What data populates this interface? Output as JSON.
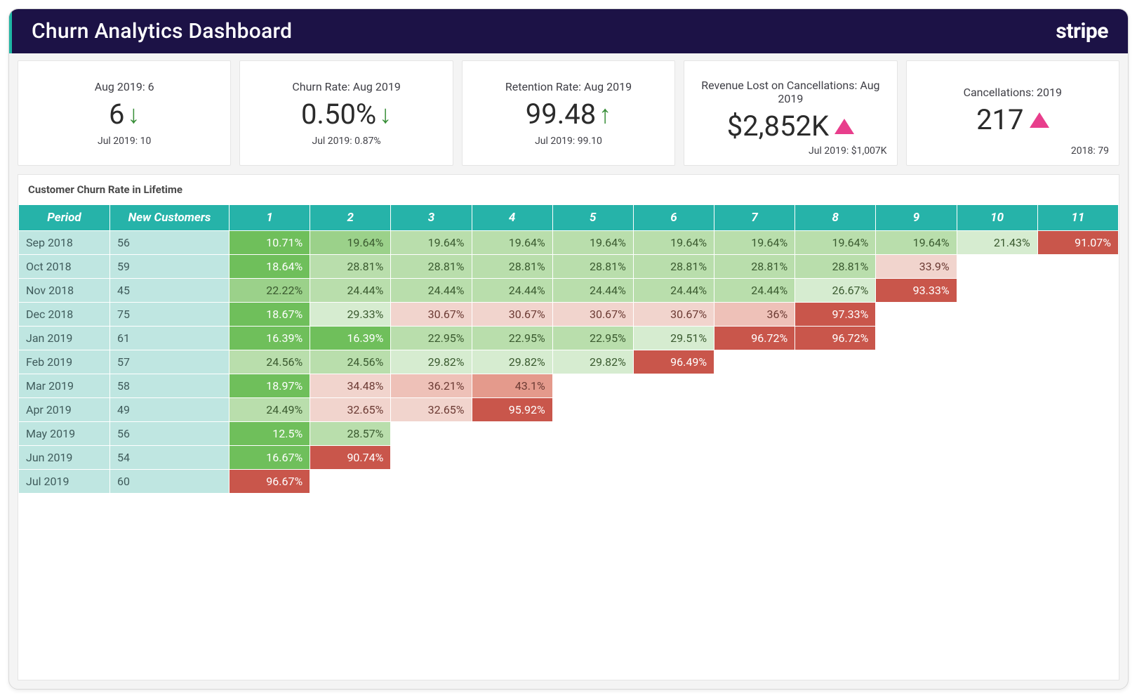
{
  "header": {
    "title": "Churn Analytics Dashboard",
    "brand": "stripe",
    "bg_color": "#1c1246",
    "accent_color": "#1fb6a4"
  },
  "kpis": [
    {
      "top": "Aug 2019: 6",
      "value": "6",
      "indicator": "arrow-down",
      "bottom": "Jul 2019: 10",
      "bottom_align": "center"
    },
    {
      "top": "Churn Rate: Aug 2019",
      "value": "0.50%",
      "indicator": "arrow-down",
      "bottom": "Jul 2019: 0.87%",
      "bottom_align": "center"
    },
    {
      "top": "Retention Rate: Aug 2019",
      "value": "99.48",
      "indicator": "arrow-up",
      "bottom": "Jul 2019: 99.10",
      "bottom_align": "center"
    },
    {
      "top": "Revenue Lost on Cancellations: Aug 2019",
      "value": "$2,852K",
      "indicator": "tri-up",
      "bottom": "Jul 2019: $1,007K",
      "bottom_align": "right"
    },
    {
      "top": "Cancellations: 2019",
      "value": "217",
      "indicator": "tri-up",
      "bottom": "2018: 79",
      "bottom_align": "right"
    }
  ],
  "cohort_table": {
    "title": "Customer Churn Rate in Lifetime",
    "type": "cohort-heatmap",
    "header_bg": "#26b3a9",
    "period_col_bg": "#bfe6e1",
    "columns": [
      "Period",
      "New Customers",
      "1",
      "2",
      "3",
      "4",
      "5",
      "6",
      "7",
      "8",
      "9",
      "10",
      "11"
    ],
    "heat_palette": {
      "g1": {
        "bg": "#6fbf5b",
        "fg": "#ffffff"
      },
      "g2": {
        "bg": "#9bd18a",
        "fg": "#3a5a2f"
      },
      "g3": {
        "bg": "#b9deac",
        "fg": "#3a5a2f"
      },
      "g4": {
        "bg": "#d6ecd0",
        "fg": "#3a5a2f"
      },
      "p1": {
        "bg": "#f1d4cd",
        "fg": "#6b3a33"
      },
      "p2": {
        "bg": "#eec1b8",
        "fg": "#6b3a33"
      },
      "p3": {
        "bg": "#e49a8c",
        "fg": "#6b3a33"
      },
      "r1": {
        "bg": "#c9564b",
        "fg": "#ffffff"
      }
    },
    "rows": [
      {
        "period": "Sep 2018",
        "new": "56",
        "cells": [
          {
            "v": "10.71%",
            "c": "g1"
          },
          {
            "v": "19.64%",
            "c": "g2"
          },
          {
            "v": "19.64%",
            "c": "g3"
          },
          {
            "v": "19.64%",
            "c": "g3"
          },
          {
            "v": "19.64%",
            "c": "g3"
          },
          {
            "v": "19.64%",
            "c": "g3"
          },
          {
            "v": "19.64%",
            "c": "g3"
          },
          {
            "v": "19.64%",
            "c": "g3"
          },
          {
            "v": "19.64%",
            "c": "g3"
          },
          {
            "v": "21.43%",
            "c": "g4"
          },
          {
            "v": "91.07%",
            "c": "r1"
          }
        ]
      },
      {
        "period": "Oct 2018",
        "new": "59",
        "cells": [
          {
            "v": "18.64%",
            "c": "g1"
          },
          {
            "v": "28.81%",
            "c": "g3"
          },
          {
            "v": "28.81%",
            "c": "g3"
          },
          {
            "v": "28.81%",
            "c": "g3"
          },
          {
            "v": "28.81%",
            "c": "g3"
          },
          {
            "v": "28.81%",
            "c": "g3"
          },
          {
            "v": "28.81%",
            "c": "g3"
          },
          {
            "v": "28.81%",
            "c": "g3"
          },
          {
            "v": "33.9%",
            "c": "p1"
          }
        ]
      },
      {
        "period": "Nov 2018",
        "new": "45",
        "cells": [
          {
            "v": "22.22%",
            "c": "g2"
          },
          {
            "v": "24.44%",
            "c": "g3"
          },
          {
            "v": "24.44%",
            "c": "g3"
          },
          {
            "v": "24.44%",
            "c": "g3"
          },
          {
            "v": "24.44%",
            "c": "g3"
          },
          {
            "v": "24.44%",
            "c": "g3"
          },
          {
            "v": "24.44%",
            "c": "g3"
          },
          {
            "v": "26.67%",
            "c": "g4"
          },
          {
            "v": "93.33%",
            "c": "r1"
          }
        ]
      },
      {
        "period": "Dec 2018",
        "new": "75",
        "cells": [
          {
            "v": "18.67%",
            "c": "g1"
          },
          {
            "v": "29.33%",
            "c": "g4"
          },
          {
            "v": "30.67%",
            "c": "p1"
          },
          {
            "v": "30.67%",
            "c": "p1"
          },
          {
            "v": "30.67%",
            "c": "p1"
          },
          {
            "v": "30.67%",
            "c": "p1"
          },
          {
            "v": "36%",
            "c": "p2"
          },
          {
            "v": "97.33%",
            "c": "r1"
          }
        ]
      },
      {
        "period": "Jan 2019",
        "new": "61",
        "cells": [
          {
            "v": "16.39%",
            "c": "g1"
          },
          {
            "v": "16.39%",
            "c": "g1"
          },
          {
            "v": "22.95%",
            "c": "g3"
          },
          {
            "v": "22.95%",
            "c": "g3"
          },
          {
            "v": "22.95%",
            "c": "g3"
          },
          {
            "v": "29.51%",
            "c": "g4"
          },
          {
            "v": "96.72%",
            "c": "r1"
          },
          {
            "v": "96.72%",
            "c": "r1"
          }
        ]
      },
      {
        "period": "Feb 2019",
        "new": "57",
        "cells": [
          {
            "v": "24.56%",
            "c": "g3"
          },
          {
            "v": "24.56%",
            "c": "g3"
          },
          {
            "v": "29.82%",
            "c": "g4"
          },
          {
            "v": "29.82%",
            "c": "g4"
          },
          {
            "v": "29.82%",
            "c": "g4"
          },
          {
            "v": "96.49%",
            "c": "r1"
          }
        ]
      },
      {
        "period": "Mar 2019",
        "new": "58",
        "cells": [
          {
            "v": "18.97%",
            "c": "g1"
          },
          {
            "v": "34.48%",
            "c": "p1"
          },
          {
            "v": "36.21%",
            "c": "p2"
          },
          {
            "v": "43.1%",
            "c": "p3"
          }
        ]
      },
      {
        "period": "Apr 2019",
        "new": "49",
        "cells": [
          {
            "v": "24.49%",
            "c": "g3"
          },
          {
            "v": "32.65%",
            "c": "p1"
          },
          {
            "v": "32.65%",
            "c": "p1"
          },
          {
            "v": "95.92%",
            "c": "r1"
          }
        ]
      },
      {
        "period": "May 2019",
        "new": "56",
        "cells": [
          {
            "v": "12.5%",
            "c": "g1"
          },
          {
            "v": "28.57%",
            "c": "g3"
          }
        ]
      },
      {
        "period": "Jun 2019",
        "new": "54",
        "cells": [
          {
            "v": "16.67%",
            "c": "g1"
          },
          {
            "v": "90.74%",
            "c": "r1"
          }
        ]
      },
      {
        "period": "Jul 2019",
        "new": "60",
        "cells": [
          {
            "v": "96.67%",
            "c": "r1"
          }
        ]
      }
    ]
  }
}
